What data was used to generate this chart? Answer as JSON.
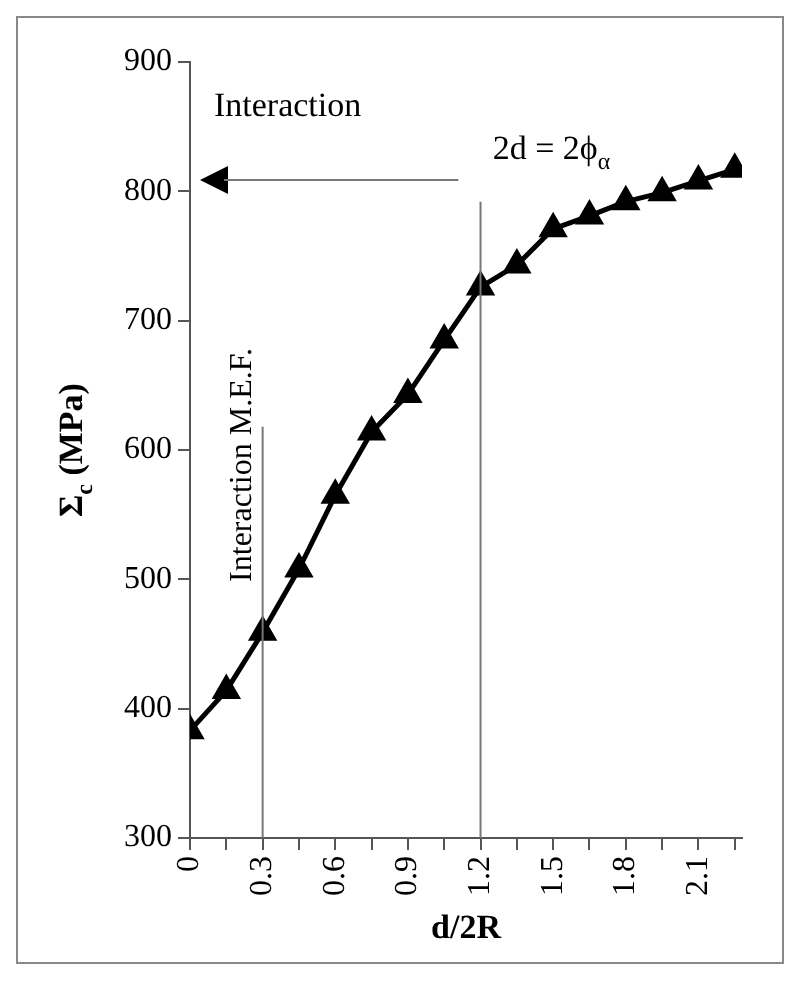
{
  "chart_data": {
    "type": "line",
    "xlabel": "d/2R",
    "ylabel": "Σ$_{c}$ (MPa)",
    "x": [
      0,
      0.15,
      0.3,
      0.45,
      0.6,
      0.75,
      0.9,
      1.05,
      1.2,
      1.35,
      1.5,
      1.65,
      1.8,
      1.95,
      2.1,
      2.25
    ],
    "series": [
      {
        "color": "#000000",
        "values": [
          383,
          414,
          459,
          508,
          565,
          614,
          643,
          685,
          726,
          743,
          771,
          781,
          792,
          799,
          808,
          817
        ]
      }
    ],
    "xlim": [
      0,
      2.28
    ],
    "xticks": [
      0,
      {
        "value": 0.15,
        "label": null
      },
      0.3,
      {
        "value": 0.45,
        "label": null
      },
      0.6,
      {
        "value": 0.75,
        "label": null
      },
      0.9,
      {
        "value": 1.05,
        "label": null
      },
      1.2,
      {
        "value": 1.35,
        "label": null
      },
      1.5,
      {
        "value": 1.65,
        "label": null
      },
      1.8,
      {
        "value": 1.95,
        "label": null
      },
      2.1,
      {
        "value": 2.25,
        "label": null
      }
    ],
    "ylim": [
      300,
      900
    ],
    "yticks": [
      300,
      400,
      500,
      600,
      700,
      800,
      900
    ],
    "ref_lines": [
      {
        "axis": "x",
        "value": 0.3,
        "label": "Interaction M.E.F."
      },
      {
        "axis": "x",
        "value": 1.2
      }
    ],
    "annotations": [
      "Interaction",
      "2d = 2ϕ$_{α}$"
    ],
    "marker": "triangle",
    "line_style": "solid",
    "grid": false,
    "legend": false
  }
}
